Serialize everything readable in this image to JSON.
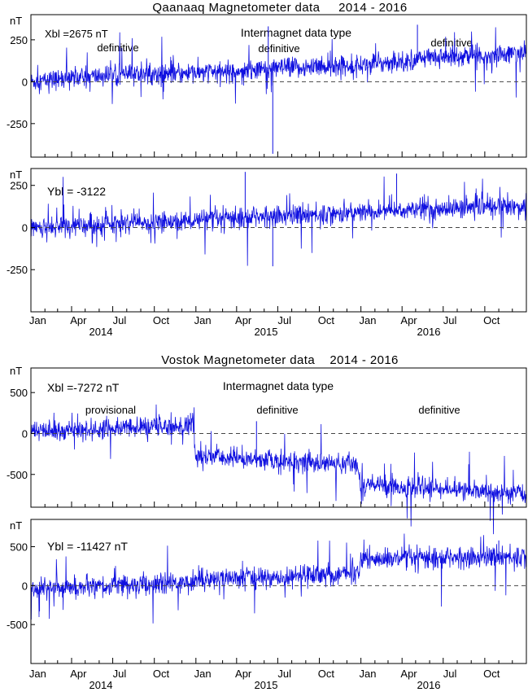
{
  "chart_data": [
    {
      "type": "line",
      "title": "Qaanaaq Magnetometer data     2014 - 2016",
      "panel": "Qaanaaq-X",
      "unit": "nT",
      "baseline_label": "Xbl =2675 nT",
      "header_label": "Intermagnet data type",
      "data_types": [
        {
          "label": "definitive",
          "period": "2014"
        },
        {
          "label": "definitive",
          "period": "2015"
        },
        {
          "label": "definitive",
          "period": "2016"
        }
      ],
      "ylim": [
        -450,
        400
      ],
      "yticks": [
        250,
        0,
        -250
      ],
      "ytick_labels": [
        "250",
        "0",
        "-250"
      ],
      "xlim": [
        "2014-01-01",
        "2016-12-31"
      ],
      "x_tick_labels": [
        "Jan",
        "Apr",
        "Jul",
        "Oct",
        "Jan",
        "Apr",
        "Jul",
        "Oct",
        "Jan",
        "Apr",
        "Jul",
        "Oct"
      ],
      "year_labels": [
        "2014",
        "2015",
        "2016"
      ],
      "zero_line": "dashed",
      "trend": [
        {
          "date": "2014-01-01",
          "value": 0
        },
        {
          "date": "2014-07-01",
          "value": 40
        },
        {
          "date": "2015-01-01",
          "value": 50
        },
        {
          "date": "2015-07-01",
          "value": 80
        },
        {
          "date": "2016-01-01",
          "value": 100
        },
        {
          "date": "2016-07-01",
          "value": 150
        },
        {
          "date": "2016-12-31",
          "value": 170
        }
      ],
      "extremes": [
        {
          "date": "2015-06-20",
          "value": -430
        },
        {
          "date": "2015-06-10",
          "value": 330
        },
        {
          "date": "2016-05-05",
          "value": 340
        }
      ]
    },
    {
      "type": "line",
      "panel": "Qaanaaq-Y",
      "unit": "nT",
      "baseline_label": "Ybl = -3122",
      "ylim": [
        -500,
        350
      ],
      "yticks": [
        250,
        0,
        -250
      ],
      "ytick_labels": [
        "250",
        "0",
        "-250"
      ],
      "xlim": [
        "2014-01-01",
        "2016-12-31"
      ],
      "x_tick_labels": [
        "Jan",
        "Apr",
        "Jul",
        "Oct",
        "Jan",
        "Apr",
        "Jul",
        "Oct",
        "Jan",
        "Apr",
        "Jul",
        "Oct"
      ],
      "year_labels": [
        "2014",
        "2015",
        "2016"
      ],
      "zero_line": "dashed",
      "trend": [
        {
          "date": "2014-01-01",
          "value": 0
        },
        {
          "date": "2014-07-01",
          "value": 20
        },
        {
          "date": "2015-01-01",
          "value": 40
        },
        {
          "date": "2015-07-01",
          "value": 70
        },
        {
          "date": "2016-01-01",
          "value": 90
        },
        {
          "date": "2016-07-01",
          "value": 110
        },
        {
          "date": "2016-12-31",
          "value": 130
        }
      ],
      "extremes": [
        {
          "date": "2015-04-20",
          "value": 330
        },
        {
          "date": "2015-06-20",
          "value": -230
        },
        {
          "date": "2016-03-20",
          "value": 320
        }
      ]
    },
    {
      "type": "line",
      "title": "Vostok Magnetometer data    2014 - 2016",
      "panel": "Vostok-X",
      "unit": "nT",
      "baseline_label": "Xbl =-7272 nT",
      "header_label": "Intermagnet data type",
      "data_types": [
        {
          "label": "provisional",
          "period": "2014"
        },
        {
          "label": "definitive",
          "period": "2015"
        },
        {
          "label": "definitive",
          "period": "2016"
        }
      ],
      "ylim": [
        -900,
        800
      ],
      "yticks": [
        500,
        0,
        -500
      ],
      "ytick_labels": [
        "500",
        "0",
        "-500"
      ],
      "xlim": [
        "2014-01-01",
        "2016-12-31"
      ],
      "x_tick_labels": [
        "Jan",
        "Apr",
        "Jul",
        "Oct",
        "Jan",
        "Apr",
        "Jul",
        "Oct",
        "Jan",
        "Apr",
        "Jul",
        "Oct"
      ],
      "year_labels": [
        "2014",
        "2015",
        "2016"
      ],
      "zero_line": "dashed",
      "trend": [
        {
          "date": "2014-01-01",
          "value": 20
        },
        {
          "date": "2014-12-25",
          "value": 100
        },
        {
          "date": "2014-12-31",
          "value": -280
        },
        {
          "date": "2015-12-25",
          "value": -380
        },
        {
          "date": "2016-01-01",
          "value": -620
        },
        {
          "date": "2016-12-31",
          "value": -740
        }
      ],
      "extremes": [
        {
          "date": "2015-05-15",
          "value": 150
        },
        {
          "date": "2014-12-20",
          "value": 250
        }
      ]
    },
    {
      "type": "line",
      "panel": "Vostok-Y",
      "unit": "nT",
      "baseline_label": "Ybl = -11427 nT",
      "ylim": [
        -1000,
        850
      ],
      "yticks": [
        500,
        0,
        -500
      ],
      "ytick_labels": [
        "500",
        "0",
        "-500"
      ],
      "xlim": [
        "2014-01-01",
        "2016-12-31"
      ],
      "x_tick_labels": [
        "Jan",
        "Apr",
        "Jul",
        "Oct",
        "Jan",
        "Apr",
        "Jul",
        "Oct",
        "Jan",
        "Apr",
        "Jul",
        "Oct"
      ],
      "year_labels": [
        "2014",
        "2015",
        "2016"
      ],
      "zero_line": "dashed",
      "trend": [
        {
          "date": "2014-01-01",
          "value": -40
        },
        {
          "date": "2014-07-01",
          "value": -10
        },
        {
          "date": "2014-12-25",
          "value": 50
        },
        {
          "date": "2015-01-01",
          "value": 80
        },
        {
          "date": "2015-12-25",
          "value": 150
        },
        {
          "date": "2016-01-01",
          "value": 330
        },
        {
          "date": "2016-12-31",
          "value": 380
        }
      ],
      "extremes": [
        {
          "date": "2014-01-20",
          "value": -330
        },
        {
          "date": "2016-11-01",
          "value": 580
        }
      ]
    }
  ],
  "colors": {
    "trace": "#1010e0",
    "axis": "#000000",
    "zero_line": "#444444"
  }
}
